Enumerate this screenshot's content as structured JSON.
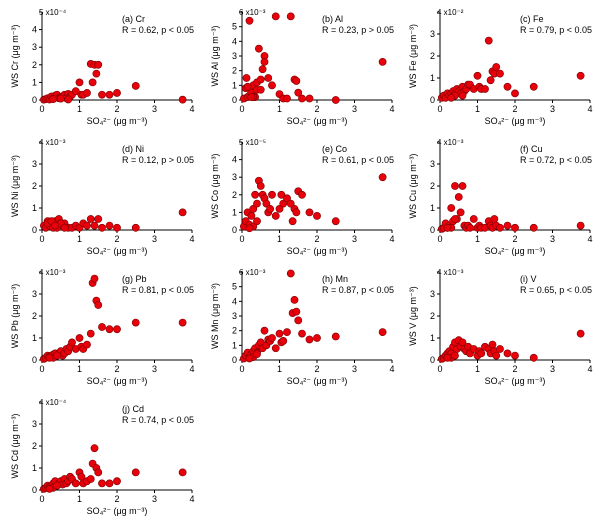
{
  "chart_data": [
    {
      "type": "scatter",
      "panel": "(a) Cr",
      "stat": "R = 0.62, p < 0.05",
      "ylabel": "WS Cr (μg m⁻³)",
      "xlabel": "SO₄²⁻ (μg m⁻³)",
      "xlim": [
        0,
        4
      ],
      "ylim": [
        0,
        0.0005
      ],
      "xticks": [
        "0",
        "1",
        "2",
        "3",
        "4"
      ],
      "yticks": [
        "0",
        "1",
        "2",
        "3",
        "4",
        "5"
      ],
      "yexp": "x10⁻⁴",
      "x": [
        0.05,
        0.1,
        0.15,
        0.2,
        0.25,
        0.3,
        0.35,
        0.4,
        0.45,
        0.5,
        0.55,
        0.6,
        0.65,
        0.7,
        0.75,
        0.8,
        0.9,
        1.0,
        1.05,
        1.1,
        1.2,
        1.3,
        1.35,
        1.4,
        1.45,
        1.5,
        1.6,
        1.8,
        2.0,
        2.5,
        3.75,
        0.3,
        0.5,
        0.7
      ],
      "y": [
        2e-06,
        5e-06,
        1e-05,
        3e-06,
        2e-05,
        1e-05,
        2.5e-05,
        3e-05,
        1e-05,
        1.5e-05,
        2e-05,
        3e-05,
        1e-05,
        3.5e-05,
        2e-05,
        3e-05,
        5e-05,
        0.0001,
        3e-05,
        3e-05,
        4e-05,
        0.000205,
        0.0001,
        0.0002,
        0.00015,
        0.0002,
        3e-05,
        3e-05,
        4e-05,
        8e-05,
        2e-06,
        5e-06,
        8e-06,
        3e-06
      ]
    },
    {
      "type": "scatter",
      "panel": "(b) Al",
      "stat": "R = 0.23, p > 0.05",
      "ylabel": "WS Al (μg m⁻³)",
      "xlabel": "SO₄²⁻ (μg m⁻³)",
      "xlim": [
        0,
        4
      ],
      "ylim": [
        0,
        0.006
      ],
      "xticks": [
        "0",
        "1",
        "2",
        "3",
        "4"
      ],
      "yticks": [
        "0",
        "1",
        "2",
        "3",
        "4",
        "5",
        "6"
      ],
      "yexp": "x10⁻³",
      "x": [
        0.05,
        0.1,
        0.12,
        0.15,
        0.2,
        0.25,
        0.3,
        0.35,
        0.4,
        0.45,
        0.5,
        0.55,
        0.6,
        0.7,
        0.8,
        0.9,
        1.0,
        1.1,
        1.2,
        1.3,
        1.4,
        1.45,
        1.5,
        1.6,
        1.8,
        2.5,
        3.75,
        0.2,
        0.3,
        0.4,
        0.5,
        0.6,
        0.15,
        0.25
      ],
      "y": [
        0.0001,
        0.0008,
        0.0015,
        0.0002,
        0.0003,
        0.0005,
        0.001,
        0.0002,
        0.0012,
        0.0035,
        0.0014,
        0.0021,
        0.003,
        0.0015,
        0.001,
        0.0057,
        0.0004,
        0.0001,
        0.0001,
        0.0057,
        0.0014,
        0.0013,
        0.0005,
        0.0001,
        0.0001,
        0.0,
        0.0026,
        0.0054,
        0.0002,
        0.0007,
        0.0007,
        0.0026,
        0.0009,
        0.0002
      ]
    },
    {
      "type": "scatter",
      "panel": "(c) Fe",
      "stat": "R = 0.79, p < 0.05",
      "ylabel": "WS Fe (μg m⁻³)",
      "xlabel": "SO₄²⁻ (μg m⁻³)",
      "xlim": [
        0,
        4
      ],
      "ylim": [
        0,
        0.04
      ],
      "xticks": [
        "0",
        "1",
        "2",
        "3",
        "4"
      ],
      "yticks": [
        "0",
        "1",
        "2",
        "3",
        "4"
      ],
      "yexp": "x10⁻²",
      "x": [
        0.05,
        0.1,
        0.15,
        0.2,
        0.25,
        0.3,
        0.35,
        0.4,
        0.45,
        0.5,
        0.55,
        0.6,
        0.65,
        0.7,
        0.75,
        0.8,
        0.9,
        1.0,
        1.05,
        1.1,
        1.2,
        1.3,
        1.35,
        1.4,
        1.45,
        1.5,
        1.6,
        1.8,
        2.0,
        2.5,
        3.75,
        0.4,
        0.6,
        0.3
      ],
      "y": [
        0.001,
        0.002,
        0.001,
        0.003,
        0.002,
        0.003,
        0.004,
        0.003,
        0.005,
        0.004,
        0.003,
        0.006,
        0.004,
        0.005,
        0.007,
        0.007,
        0.005,
        0.011,
        0.006,
        0.005,
        0.005,
        0.027,
        0.009,
        0.013,
        0.012,
        0.015,
        0.012,
        0.006,
        0.003,
        0.006,
        0.011,
        0.002,
        0.002,
        0.001
      ]
    },
    {
      "type": "scatter",
      "panel": "(d) Ni",
      "stat": "R = 0.12, p > 0.05",
      "ylabel": "WS Ni (μg m⁻³)",
      "xlabel": "SO₄²⁻ (μg m⁻³)",
      "xlim": [
        0,
        4
      ],
      "ylim": [
        0,
        0.004
      ],
      "xticks": [
        "0",
        "1",
        "2",
        "3",
        "4"
      ],
      "yticks": [
        "0",
        "1",
        "2",
        "3",
        "4"
      ],
      "yexp": "x10⁻³",
      "x": [
        0.05,
        0.1,
        0.15,
        0.2,
        0.25,
        0.3,
        0.35,
        0.4,
        0.45,
        0.5,
        0.55,
        0.6,
        0.7,
        0.8,
        0.9,
        1.0,
        1.1,
        1.2,
        1.3,
        1.4,
        1.5,
        1.6,
        1.8,
        2.0,
        2.5,
        3.75,
        0.2,
        0.3,
        0.4,
        0.5,
        0.6,
        0.15,
        0.25,
        0.35
      ],
      "y": [
        0.0002,
        0.0001,
        0.0004,
        0.0003,
        0.0002,
        0.0003,
        0.0004,
        0.0002,
        0.0005,
        0.0003,
        0.0002,
        0.0003,
        0.0001,
        0.0001,
        0.0002,
        0.0001,
        0.0003,
        0.0002,
        0.0005,
        0.0002,
        0.0005,
        0.0001,
        0.0002,
        0.0001,
        0.0001,
        0.0008,
        0.0002,
        0.0001,
        0.0001,
        0.0003,
        0.0001,
        0.0003,
        0.0004,
        0.0002
      ]
    },
    {
      "type": "scatter",
      "panel": "(e) Co",
      "stat": "R = 0.61, p < 0.05",
      "ylabel": "WS Co (μg m⁻³)",
      "xlabel": "SO₄²⁻ (μg m⁻³)",
      "xlim": [
        0,
        4
      ],
      "ylim": [
        0,
        5e-05
      ],
      "xticks": [
        "0",
        "1",
        "2",
        "3",
        "4"
      ],
      "yticks": [
        "0",
        "1",
        "2",
        "3",
        "4",
        "5"
      ],
      "yexp": "x10⁻⁵",
      "x": [
        0.05,
        0.1,
        0.15,
        0.2,
        0.25,
        0.3,
        0.35,
        0.4,
        0.45,
        0.5,
        0.55,
        0.6,
        0.65,
        0.7,
        0.75,
        0.8,
        0.9,
        1.0,
        1.05,
        1.1,
        1.2,
        1.3,
        1.35,
        1.4,
        1.45,
        1.5,
        1.6,
        1.8,
        2.0,
        2.5,
        3.75,
        0.3,
        0.4,
        0.2
      ],
      "y": [
        2e-06,
        5e-06,
        1e-05,
        3e-06,
        8e-06,
        1.2e-05,
        2e-05,
        1.5e-05,
        2.8e-05,
        2.5e-05,
        2e-05,
        1.8e-05,
        1.5e-05,
        1e-05,
        1.2e-05,
        2e-05,
        8e-06,
        1.2e-05,
        2e-05,
        1.5e-05,
        1.8e-05,
        1.5e-05,
        5e-06,
        1.2e-05,
        1e-05,
        2.2e-05,
        2e-05,
        1e-05,
        8e-06,
        5e-06,
        3e-05,
        2e-06,
        5e-06,
        1e-06
      ]
    },
    {
      "type": "scatter",
      "panel": "(f) Cu",
      "stat": "R = 0.72, p < 0.05",
      "ylabel": "WS Cu (μg m⁻³)",
      "xlabel": "SO₄²⁻ (μg m⁻³)",
      "xlim": [
        0,
        4
      ],
      "ylim": [
        0,
        0.004
      ],
      "xticks": [
        "0",
        "1",
        "2",
        "3",
        "4"
      ],
      "yticks": [
        "0",
        "1",
        "2",
        "3",
        "4"
      ],
      "yexp": "x10⁻³",
      "x": [
        0.05,
        0.1,
        0.15,
        0.2,
        0.25,
        0.3,
        0.35,
        0.4,
        0.45,
        0.5,
        0.55,
        0.6,
        0.65,
        0.7,
        0.75,
        0.8,
        0.9,
        1.0,
        1.05,
        1.1,
        1.2,
        1.3,
        1.35,
        1.4,
        1.45,
        1.5,
        1.6,
        1.8,
        2.0,
        2.5,
        3.75,
        0.3,
        0.4,
        0.2
      ],
      "y": [
        5e-05,
        0.0001,
        0.0003,
        0.0001,
        0.0002,
        0.001,
        0.0004,
        0.002,
        0.0005,
        0.0015,
        0.0008,
        0.002,
        0.0002,
        0.0001,
        0.0002,
        0.0001,
        0.0005,
        0.0001,
        0.0002,
        0.0001,
        0.0001,
        0.0004,
        0.0002,
        0.0001,
        0.0005,
        0.0002,
        0.0001,
        0.0002,
        0.0001,
        0.0001,
        0.0002,
        0.0001,
        0.0005,
        0.0001
      ]
    },
    {
      "type": "scatter",
      "panel": "(g) Pb",
      "stat": "R = 0.81, p < 0.05",
      "ylabel": "WS Pb (μg m⁻³)",
      "xlabel": "SO₄²⁻ (μg m⁻³)",
      "xlim": [
        0,
        4
      ],
      "ylim": [
        0,
        0.004
      ],
      "xticks": [
        "0",
        "1",
        "2",
        "3",
        "4"
      ],
      "yticks": [
        "0",
        "1",
        "2",
        "3",
        "4"
      ],
      "yexp": "x10⁻³",
      "x": [
        0.05,
        0.1,
        0.15,
        0.2,
        0.25,
        0.3,
        0.35,
        0.4,
        0.45,
        0.5,
        0.55,
        0.6,
        0.65,
        0.7,
        0.75,
        0.8,
        0.9,
        1.0,
        1.05,
        1.1,
        1.2,
        1.3,
        1.35,
        1.4,
        1.45,
        1.5,
        1.6,
        1.8,
        2.0,
        2.5,
        3.75,
        0.3,
        0.4,
        0.2
      ],
      "y": [
        5e-05,
        0.0001,
        0.0002,
        0.00015,
        0.0002,
        0.00025,
        0.0003,
        0.0002,
        0.0003,
        0.0004,
        0.0002,
        0.0003,
        0.0005,
        0.0004,
        0.0006,
        0.0008,
        0.0005,
        0.001,
        0.0006,
        0.0005,
        0.0007,
        0.0012,
        0.0035,
        0.0037,
        0.0027,
        0.0025,
        0.0015,
        0.0014,
        0.0014,
        0.0017,
        0.0017,
        0.0001,
        0.0002,
        0.0001
      ]
    },
    {
      "type": "scatter",
      "panel": "(h) Mn",
      "stat": "R = 0.87, p < 0.05",
      "ylabel": "WS Mn (μg m⁻³)",
      "xlabel": "SO₄²⁻ (μg m⁻³)",
      "xlim": [
        0,
        4
      ],
      "ylim": [
        0,
        0.006
      ],
      "xticks": [
        "0",
        "1",
        "2",
        "3",
        "4"
      ],
      "yticks": [
        "0",
        "1",
        "2",
        "3",
        "4",
        "5",
        "6"
      ],
      "yexp": "x10⁻³",
      "x": [
        0.05,
        0.1,
        0.15,
        0.2,
        0.25,
        0.3,
        0.35,
        0.4,
        0.45,
        0.5,
        0.55,
        0.6,
        0.65,
        0.7,
        0.75,
        0.8,
        0.9,
        1.0,
        1.05,
        1.1,
        1.2,
        1.3,
        1.35,
        1.4,
        1.45,
        1.5,
        1.6,
        1.8,
        2.0,
        2.5,
        3.75,
        0.3,
        0.4,
        0.2
      ],
      "y": [
        0.0001,
        0.0003,
        0.0005,
        0.0002,
        0.0004,
        0.0006,
        0.0008,
        0.0005,
        0.001,
        0.0012,
        0.0008,
        0.002,
        0.001,
        0.0014,
        0.0013,
        0.0015,
        0.0008,
        0.0018,
        0.0012,
        0.0013,
        0.0019,
        0.0059,
        0.0032,
        0.0041,
        0.0033,
        0.0027,
        0.0018,
        0.0014,
        0.0015,
        0.0016,
        0.0019,
        0.0002,
        0.0004,
        0.0001
      ]
    },
    {
      "type": "scatter",
      "panel": "(i) V",
      "stat": "R = 0.65, p < 0.05",
      "ylabel": "WS V (μg m⁻³)",
      "xlabel": "SO₄²⁻ (μg m⁻³)",
      "xlim": [
        0,
        4
      ],
      "ylim": [
        0,
        0.004
      ],
      "xticks": [
        "0",
        "1",
        "2",
        "3",
        "4"
      ],
      "yticks": [
        "0",
        "1",
        "2",
        "3",
        "4"
      ],
      "yexp": "x10⁻³",
      "x": [
        0.05,
        0.1,
        0.15,
        0.2,
        0.25,
        0.3,
        0.35,
        0.4,
        0.45,
        0.5,
        0.55,
        0.6,
        0.65,
        0.7,
        0.75,
        0.8,
        0.9,
        1.0,
        1.05,
        1.1,
        1.2,
        1.3,
        1.35,
        1.4,
        1.45,
        1.5,
        1.6,
        1.8,
        2.0,
        2.5,
        3.75,
        0.3,
        0.4,
        0.2
      ],
      "y": [
        5e-05,
        0.0001,
        0.0002,
        0.0003,
        0.0004,
        0.0003,
        0.0006,
        0.0008,
        0.0005,
        0.0009,
        0.0006,
        0.0008,
        0.0005,
        0.0004,
        0.0006,
        0.0003,
        0.0005,
        0.0002,
        0.0004,
        0.0003,
        0.0006,
        0.0005,
        0.0003,
        0.0007,
        0.0004,
        0.0002,
        0.0005,
        0.0003,
        0.0002,
        0.0001,
        0.0012,
        0.0001,
        0.0002,
        0.0001
      ]
    },
    {
      "type": "scatter",
      "panel": "(j) Cd",
      "stat": "R = 0.74, p < 0.05",
      "ylabel": "WS Cd (μg m⁻³)",
      "xlabel": "SO₄²⁻ (μg m⁻³)",
      "xlim": [
        0,
        4
      ],
      "ylim": [
        0,
        0.0004
      ],
      "xticks": [
        "0",
        "1",
        "2",
        "3",
        "4"
      ],
      "yticks": [
        "0",
        "1",
        "2",
        "3",
        "4"
      ],
      "yexp": "x10⁻⁴",
      "x": [
        0.05,
        0.1,
        0.15,
        0.2,
        0.25,
        0.3,
        0.35,
        0.4,
        0.45,
        0.5,
        0.55,
        0.6,
        0.65,
        0.7,
        0.75,
        0.8,
        0.9,
        1.0,
        1.05,
        1.1,
        1.2,
        1.3,
        1.35,
        1.4,
        1.45,
        1.5,
        1.6,
        1.8,
        2.0,
        2.5,
        3.75,
        0.3,
        0.4,
        0.2
      ],
      "y": [
        5e-06,
        1e-05,
        2e-05,
        1.5e-05,
        2e-05,
        3e-05,
        4e-05,
        2e-05,
        3e-05,
        4e-05,
        2.5e-05,
        5e-05,
        3e-05,
        4e-05,
        6e-05,
        5e-05,
        3e-05,
        8e-05,
        6e-05,
        3e-05,
        4e-05,
        5e-05,
        0.00012,
        0.00019,
        0.0001,
        8e-05,
        3e-05,
        3e-05,
        4e-05,
        8e-05,
        8e-05,
        1e-05,
        2e-05,
        5e-06
      ]
    }
  ]
}
